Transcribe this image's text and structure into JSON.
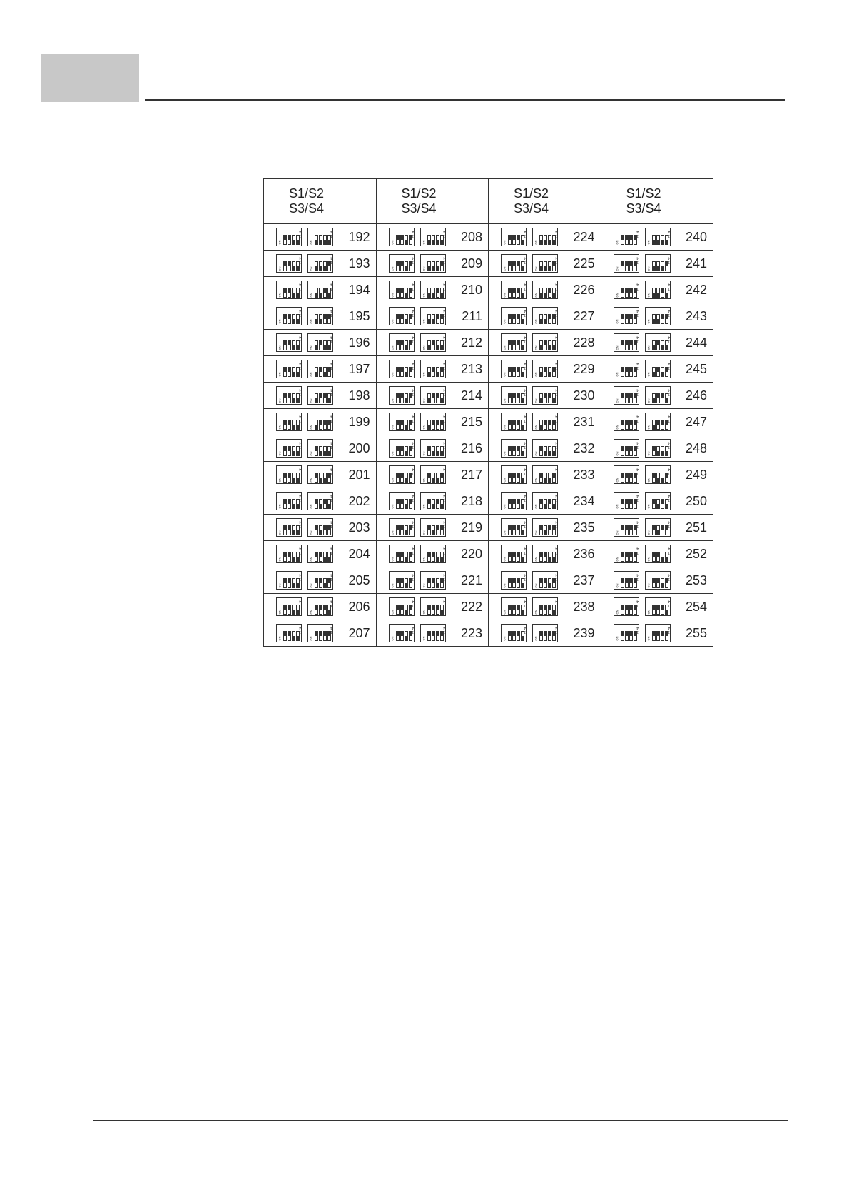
{
  "table": {
    "headers": [
      {
        "line1": "S1/S2",
        "line2": "S3/S4"
      },
      {
        "line1": "S1/S2",
        "line2": "S3/S4"
      },
      {
        "line1": "S1/S2",
        "line2": "S3/S4"
      },
      {
        "line1": "S1/S2",
        "line2": "S3/S4"
      }
    ],
    "switch_label": "1 2 3 4",
    "switch_on_label": "ON",
    "columns": [
      [
        192,
        193,
        194,
        195,
        196,
        197,
        198,
        199,
        200,
        201,
        202,
        203,
        204,
        205,
        206,
        207
      ],
      [
        208,
        209,
        210,
        211,
        212,
        213,
        214,
        215,
        216,
        217,
        218,
        219,
        220,
        221,
        222,
        223
      ],
      [
        224,
        225,
        226,
        227,
        228,
        229,
        230,
        231,
        232,
        233,
        234,
        235,
        236,
        237,
        238,
        239
      ],
      [
        240,
        241,
        242,
        243,
        244,
        245,
        246,
        247,
        248,
        249,
        250,
        251,
        252,
        253,
        254,
        255
      ]
    ]
  }
}
